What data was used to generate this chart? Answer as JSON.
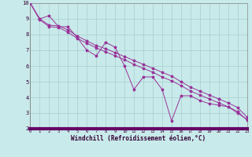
{
  "xlabel": "Windchill (Refroidissement éolien,°C)",
  "bg_color": "#c8eaea",
  "grid_color": "#a8cccc",
  "line_color": "#993399",
  "axis_bar_color": "#660066",
  "xmin": 0,
  "xmax": 23,
  "ymin": 2,
  "ymax": 10,
  "x_data": [
    0,
    1,
    2,
    3,
    4,
    5,
    6,
    7,
    8,
    9,
    10,
    11,
    12,
    13,
    14,
    15,
    16,
    17,
    18,
    19,
    20,
    21,
    22,
    23
  ],
  "line1": [
    10.0,
    9.0,
    9.2,
    8.5,
    8.5,
    7.8,
    7.0,
    6.65,
    7.5,
    7.2,
    6.0,
    4.5,
    5.3,
    5.3,
    4.5,
    2.5,
    4.1,
    4.1,
    3.8,
    3.6,
    3.5,
    3.4,
    3.0,
    2.6
  ],
  "line2": [
    10.0,
    9.0,
    8.6,
    8.55,
    8.3,
    7.9,
    7.6,
    7.3,
    7.1,
    6.85,
    6.6,
    6.35,
    6.1,
    5.85,
    5.6,
    5.35,
    5.0,
    4.65,
    4.4,
    4.15,
    3.9,
    3.65,
    3.35,
    2.75
  ],
  "line3": [
    10.0,
    8.95,
    8.5,
    8.45,
    8.15,
    7.75,
    7.45,
    7.15,
    6.9,
    6.65,
    6.4,
    6.1,
    5.85,
    5.6,
    5.3,
    5.05,
    4.75,
    4.4,
    4.15,
    3.9,
    3.65,
    3.4,
    3.1,
    2.55
  ]
}
